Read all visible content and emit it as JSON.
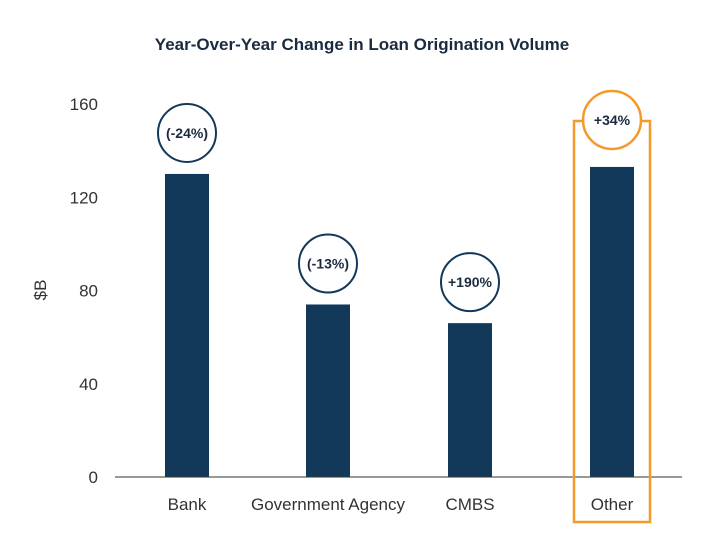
{
  "colors": {
    "bar": "#12385a",
    "highlight": "#f39a2b",
    "badge_stroke": "#12385a",
    "axis": "#333333"
  },
  "chart_data": {
    "type": "bar",
    "title": "Year-Over-Year Change in Loan Origination Volume",
    "xlabel": "",
    "ylabel": "$B",
    "ylim": [
      0,
      160
    ],
    "yticks": [
      0,
      40,
      80,
      120,
      160
    ],
    "categories": [
      "Bank",
      "Government Agency",
      "CMBS",
      "Other"
    ],
    "values": [
      130,
      74,
      66,
      133
    ],
    "annotations": [
      "(-24%)",
      "(-13%)",
      "+190%",
      "+34%"
    ],
    "highlighted_category": "Other"
  }
}
